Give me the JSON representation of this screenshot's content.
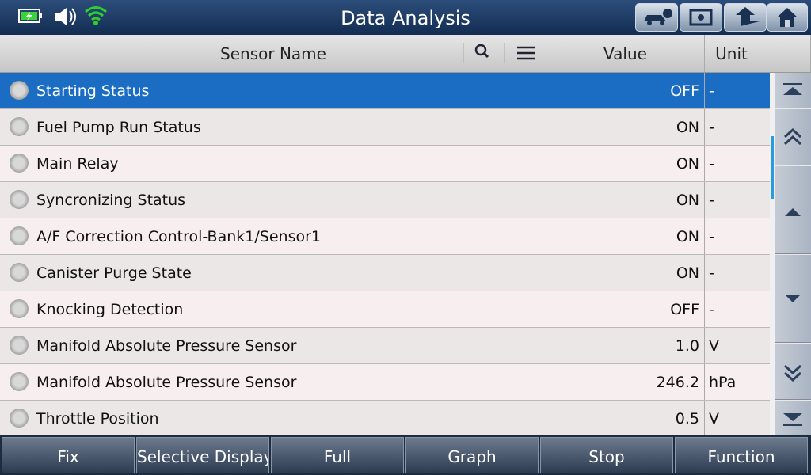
{
  "header": {
    "title": "Data Analysis"
  },
  "table": {
    "columns": [
      "Sensor Name",
      "Value",
      "Unit"
    ],
    "rows": [
      [
        "Starting Status",
        "OFF",
        "-"
      ],
      [
        "Fuel Pump Run Status",
        "ON",
        "-"
      ],
      [
        "Main Relay",
        "ON",
        "-"
      ],
      [
        "Syncronizing Status",
        "ON",
        "-"
      ],
      [
        "A/F Correction Control-Bank1/Sensor1",
        "ON",
        "-"
      ],
      [
        "Canister Purge State",
        "ON",
        "-"
      ],
      [
        "Knocking Detection",
        "OFF",
        "-"
      ],
      [
        "Manifold Absolute Pressure Sensor",
        "1.0",
        "V"
      ],
      [
        "Manifold Absolute Pressure Sensor",
        "246.2",
        "hPa"
      ],
      [
        "Throttle Position",
        "0.5",
        "V"
      ]
    ]
  },
  "footer": {
    "buttons": [
      "Fix",
      "Selective Display",
      "Full",
      "Graph",
      "Stop",
      "Function"
    ]
  }
}
